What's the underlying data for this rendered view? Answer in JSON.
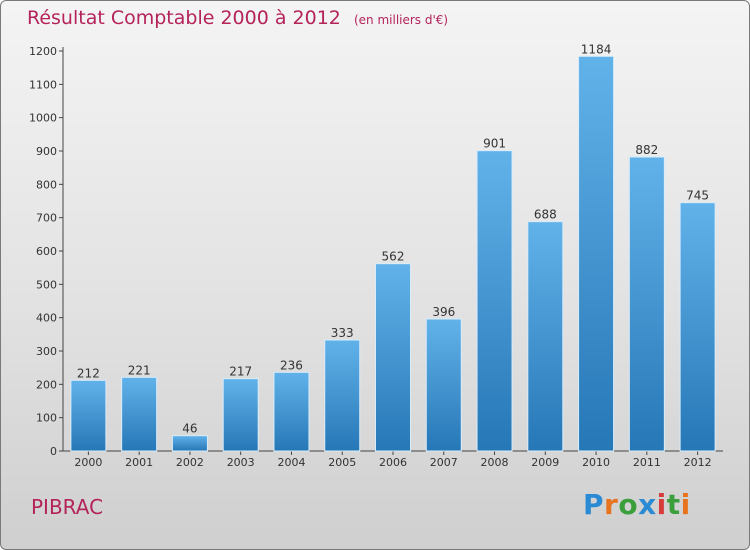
{
  "header": {
    "title": "Résultat Comptable 2000 à 2012",
    "unit": "(en milliers d'€)"
  },
  "commune": "PIBRAC",
  "logo": {
    "text": "Proxiti",
    "colors": [
      "#2a8ad4",
      "#e8731f",
      "#3b9f3b",
      "#2a8ad4",
      "#d63c3c",
      "#3b9f3b",
      "#e8731f"
    ]
  },
  "colors": {
    "bar_top": "#62b2ea",
    "bar_bottom": "#2677b6",
    "title": "#b4235a"
  },
  "chart_data": {
    "type": "bar",
    "title": "Résultat Comptable 2000 à 2012",
    "subtitle": "(en milliers d'€)",
    "categories": [
      "2000",
      "2001",
      "2002",
      "2003",
      "2004",
      "2005",
      "2006",
      "2007",
      "2008",
      "2009",
      "2010",
      "2011",
      "2012"
    ],
    "values": [
      212,
      221,
      46,
      217,
      236,
      333,
      562,
      396,
      901,
      688,
      1184,
      882,
      745
    ],
    "ylim": [
      0,
      1200
    ],
    "yticks": [
      0,
      100,
      200,
      300,
      400,
      500,
      600,
      700,
      800,
      900,
      1000,
      1100,
      1200
    ],
    "grid": false,
    "legend": "none"
  }
}
